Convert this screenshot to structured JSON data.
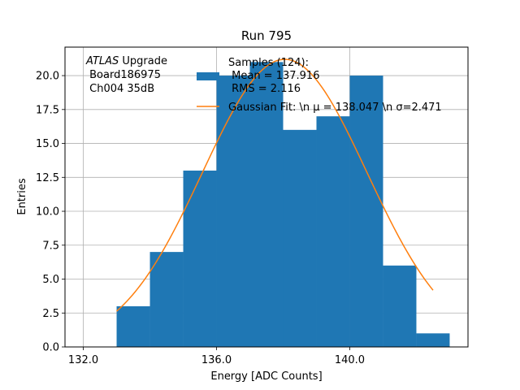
{
  "chart_data": {
    "type": "bar",
    "title": "Run 795",
    "xlabel": "Energy [ADC Counts]",
    "ylabel": "Entries",
    "xlim": [
      131.45,
      143.55
    ],
    "ylim": [
      0,
      22.1
    ],
    "xticks": [
      132.0,
      136.0,
      140.0
    ],
    "xtick_labels": [
      "132.0",
      "136.0",
      "140.0"
    ],
    "yticks": [
      0,
      2.5,
      5,
      7.5,
      10,
      12.5,
      15,
      17.5,
      20
    ],
    "ytick_labels": [
      "0.0",
      "2.5",
      "5.0",
      "7.5",
      "10.0",
      "12.5",
      "15.0",
      "17.5",
      "20.0"
    ],
    "grid": true,
    "bar_color": "#1f77b4",
    "fit_color": "#ff7f0e",
    "bins": [
      {
        "x0": 133,
        "x1": 134,
        "count": 3
      },
      {
        "x0": 134,
        "x1": 135,
        "count": 7
      },
      {
        "x0": 135,
        "x1": 136,
        "count": 13
      },
      {
        "x0": 136,
        "x1": 137,
        "count": 20
      },
      {
        "x0": 137,
        "x1": 138,
        "count": 21
      },
      {
        "x0": 138,
        "x1": 139,
        "count": 16
      },
      {
        "x0": 139,
        "x1": 140,
        "count": 17
      },
      {
        "x0": 140,
        "x1": 141,
        "count": 20
      },
      {
        "x0": 141,
        "x1": 142,
        "count": 6
      },
      {
        "x0": 142,
        "x1": 143,
        "count": 1
      }
    ],
    "fit": {
      "mu": 138.047,
      "sigma": 2.471,
      "amplitude": 21.2,
      "x_range": [
        133,
        142.5
      ]
    },
    "annotation": {
      "italic": "ATLAS",
      "line1_rest": " Upgrade",
      "line2": " Board186975",
      "line3": " Ch004 35dB"
    },
    "legend": {
      "position": "top-right",
      "samples_line1": "Samples (124):",
      "samples_line2": " Mean = 137.916",
      "samples_line3": " RMS = 2.116",
      "fit_label": "Gaussian Fit: \\n $\\mu$ = 138.047 \\n $\\sigma$=2.471",
      "fit_label_display": "Gaussian Fit: \\n μ = 138.047 \\n σ=2.471"
    }
  }
}
